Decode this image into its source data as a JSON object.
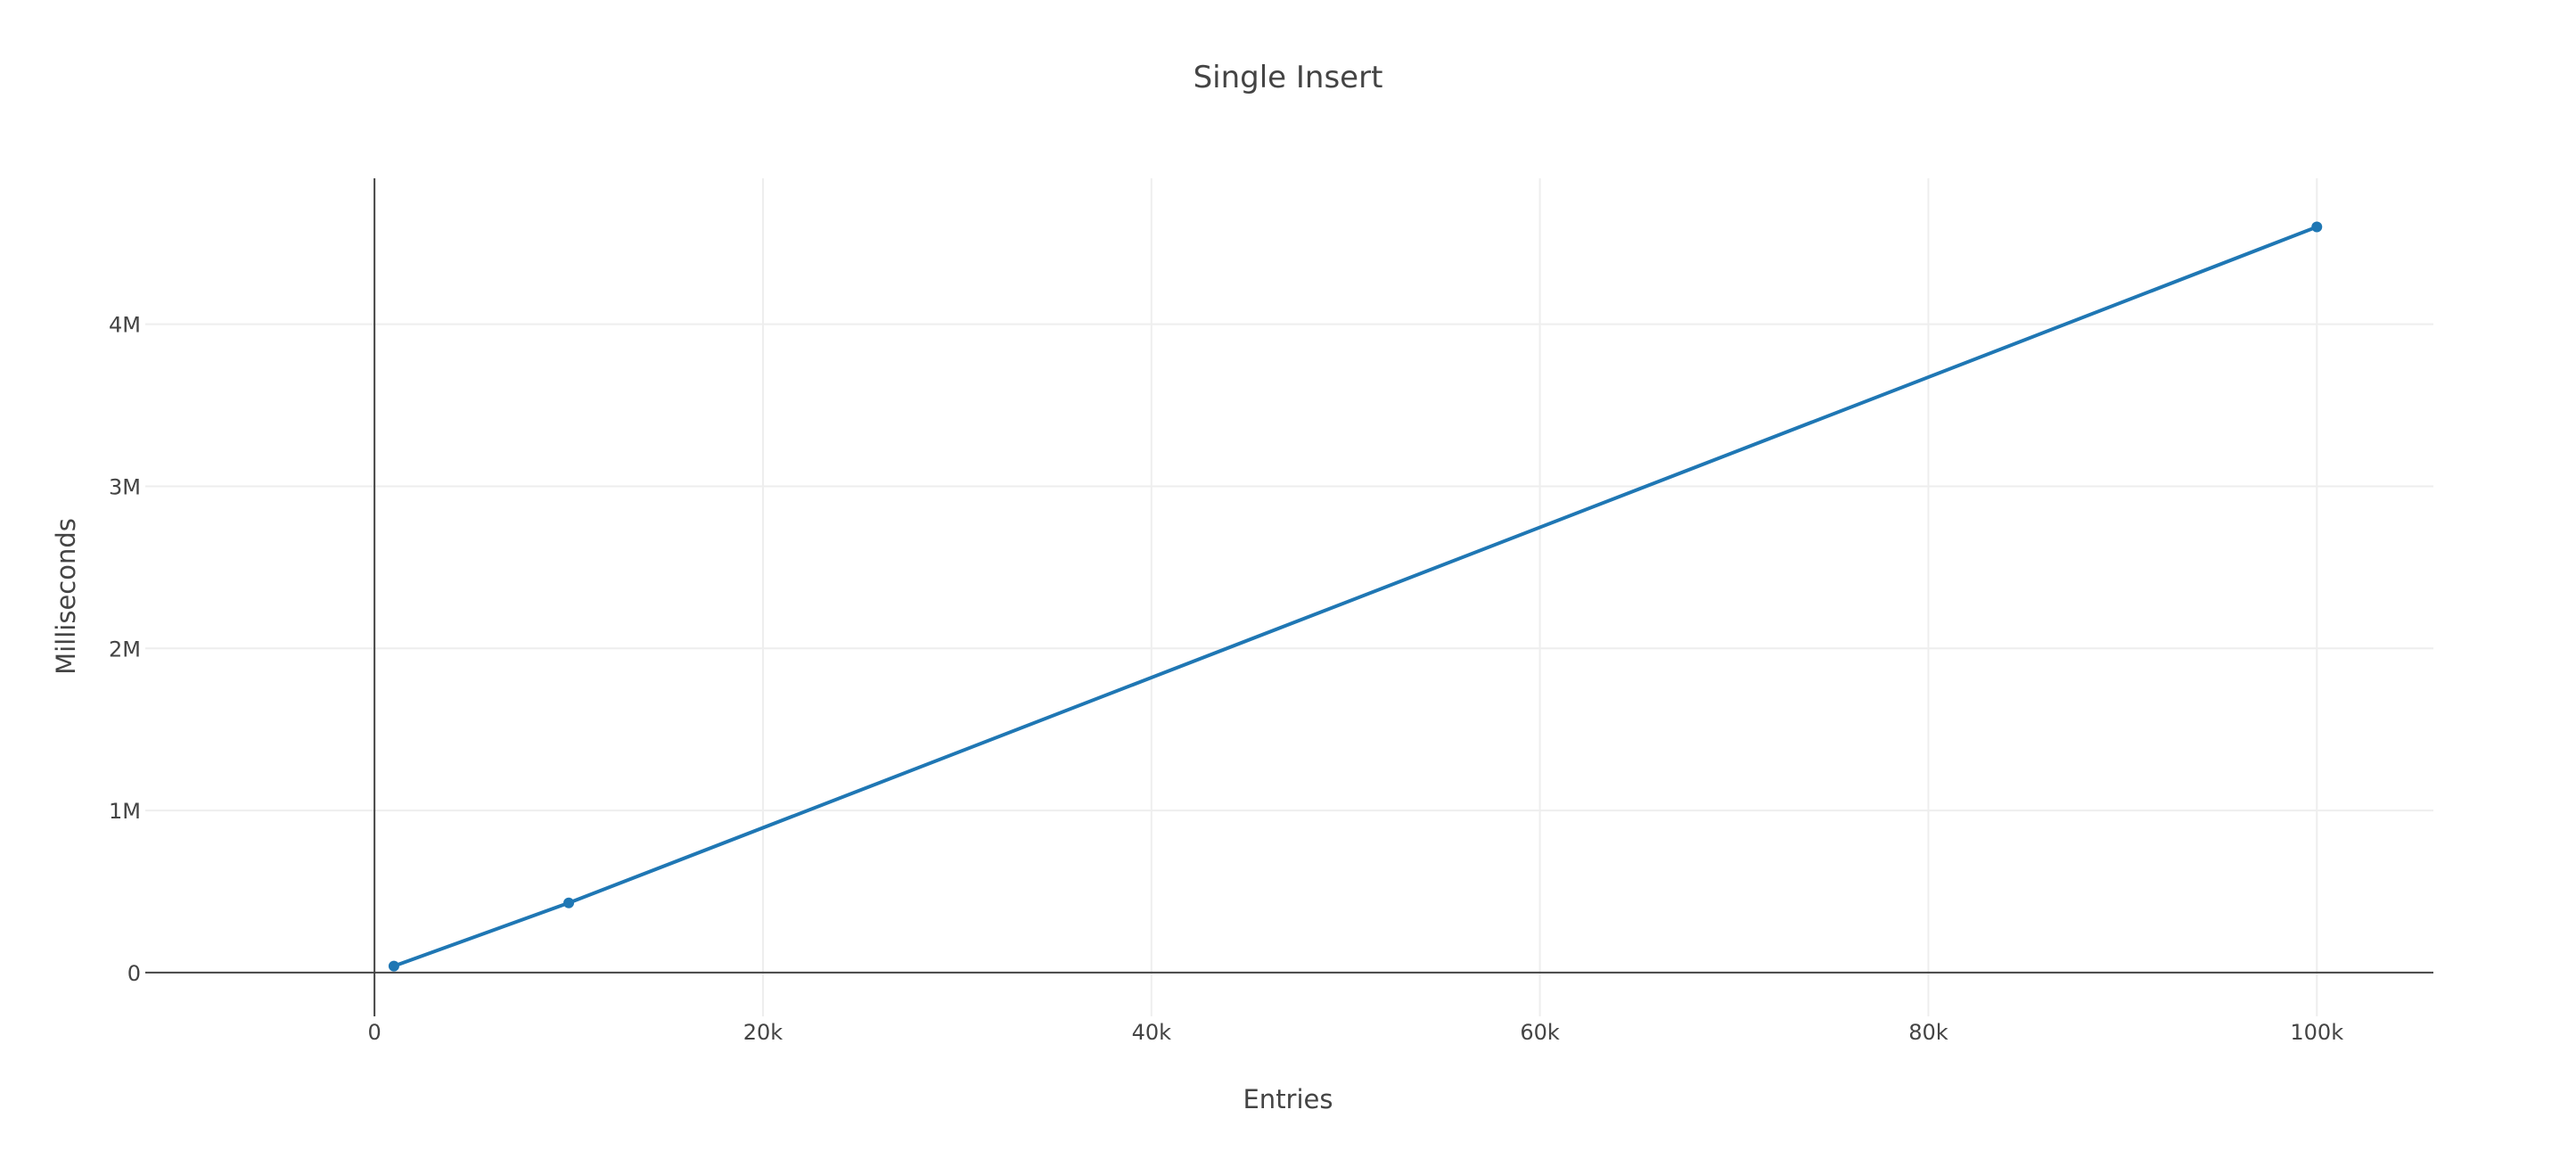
{
  "chart_data": {
    "type": "line",
    "title": "Single Insert",
    "xlabel": "Entries",
    "ylabel": "Milliseconds",
    "xlim": [
      -11800,
      106000
    ],
    "ylim": [
      -270000,
      4900000
    ],
    "x_ticks": [
      {
        "value": 0,
        "label": "0"
      },
      {
        "value": 20000,
        "label": "20k"
      },
      {
        "value": 40000,
        "label": "40k"
      },
      {
        "value": 60000,
        "label": "60k"
      },
      {
        "value": 80000,
        "label": "80k"
      },
      {
        "value": 100000,
        "label": "100k"
      }
    ],
    "y_ticks": [
      {
        "value": 0,
        "label": "0"
      },
      {
        "value": 1000000,
        "label": "1M"
      },
      {
        "value": 2000000,
        "label": "2M"
      },
      {
        "value": 3000000,
        "label": "3M"
      },
      {
        "value": 4000000,
        "label": "4M"
      }
    ],
    "grid": true,
    "legend": "none",
    "series": [
      {
        "color": "#1f77b4",
        "x": [
          1000,
          10000,
          100000
        ],
        "y": [
          40000,
          430000,
          4600000
        ]
      }
    ]
  }
}
